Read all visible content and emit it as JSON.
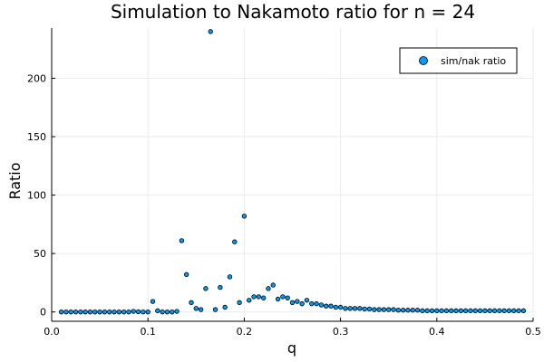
{
  "chart_data": {
    "type": "scatter",
    "title": "Simulation to Nakamoto ratio for n = 24",
    "xlabel": "q",
    "ylabel": "Ratio",
    "xlim": [
      0.0,
      0.5
    ],
    "ylim": [
      -8,
      243
    ],
    "xticks": [
      0.0,
      0.1,
      0.2,
      0.3,
      0.4,
      0.5
    ],
    "xtick_labels": [
      "0.0",
      "0.1",
      "0.2",
      "0.3",
      "0.4",
      "0.5"
    ],
    "yticks": [
      0,
      50,
      100,
      150,
      200
    ],
    "ytick_labels": [
      "0",
      "50",
      "100",
      "150",
      "200"
    ],
    "grid": true,
    "legend_position": "top-right",
    "series": [
      {
        "name": "sim/nak ratio",
        "color": "#009af9",
        "x": [
          0.01,
          0.015,
          0.02,
          0.025,
          0.03,
          0.035,
          0.04,
          0.045,
          0.05,
          0.055,
          0.06,
          0.065,
          0.07,
          0.075,
          0.08,
          0.085,
          0.09,
          0.095,
          0.1,
          0.105,
          0.11,
          0.115,
          0.12,
          0.125,
          0.13,
          0.135,
          0.14,
          0.145,
          0.15,
          0.155,
          0.16,
          0.165,
          0.17,
          0.175,
          0.18,
          0.185,
          0.19,
          0.195,
          0.2,
          0.205,
          0.21,
          0.215,
          0.22,
          0.225,
          0.23,
          0.235,
          0.24,
          0.245,
          0.25,
          0.255,
          0.26,
          0.265,
          0.27,
          0.275,
          0.28,
          0.285,
          0.29,
          0.295,
          0.3,
          0.305,
          0.31,
          0.315,
          0.32,
          0.325,
          0.33,
          0.335,
          0.34,
          0.345,
          0.35,
          0.355,
          0.36,
          0.365,
          0.37,
          0.375,
          0.38,
          0.385,
          0.39,
          0.395,
          0.4,
          0.405,
          0.41,
          0.415,
          0.42,
          0.425,
          0.43,
          0.435,
          0.44,
          0.445,
          0.45,
          0.455,
          0.46,
          0.465,
          0.47,
          0.475,
          0.48,
          0.485,
          0.49
        ],
        "y": [
          0,
          0,
          0,
          0,
          0,
          0,
          0,
          0,
          0,
          0,
          0,
          0,
          0,
          0,
          0,
          0.5,
          0.2,
          0,
          0,
          9,
          1,
          0,
          0,
          0,
          0.5,
          61,
          32,
          8,
          3,
          2,
          20,
          240,
          2,
          21,
          4,
          30,
          60,
          8,
          82,
          10,
          13,
          13,
          12,
          20,
          23,
          11,
          13,
          12,
          8,
          9,
          7,
          10,
          7,
          7,
          6,
          5,
          5,
          4,
          4,
          3,
          3,
          3,
          3,
          2.5,
          2.5,
          2,
          2,
          2,
          2,
          2,
          1.5,
          1.5,
          1.5,
          1.5,
          1.5,
          1,
          1,
          1,
          1,
          1,
          1,
          1,
          1,
          1,
          1,
          1,
          1,
          1,
          1,
          1,
          1,
          1,
          1,
          1,
          1,
          1,
          1
        ]
      }
    ]
  }
}
